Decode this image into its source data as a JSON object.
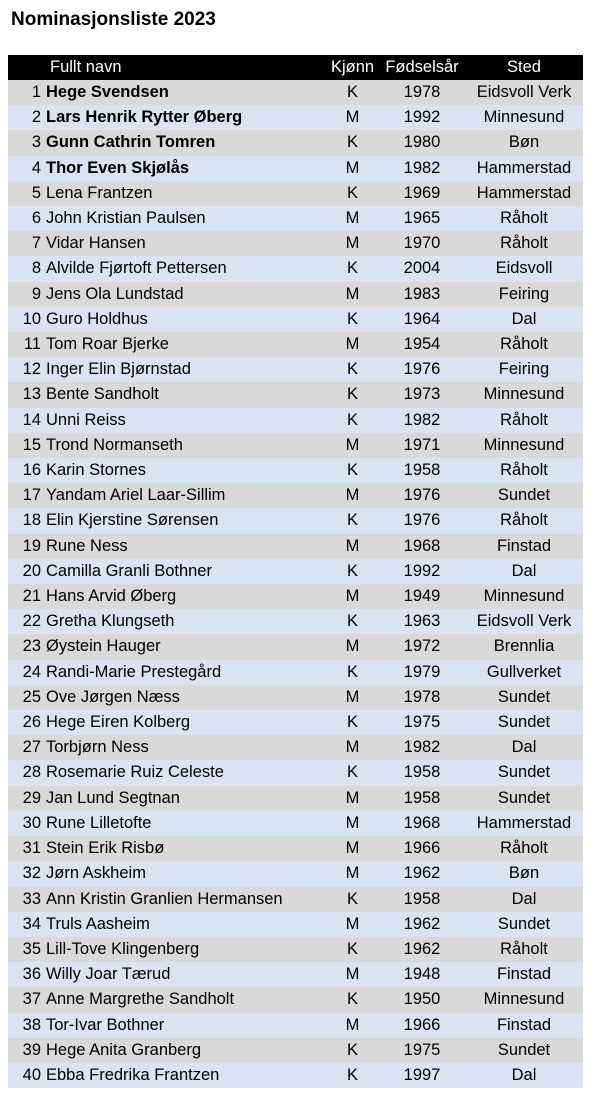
{
  "title": "Nominasjonsliste 2023",
  "headers": {
    "num": "",
    "name": "Fullt navn",
    "gender": "Kjønn",
    "year": "Fødselsår",
    "place": "Sted"
  },
  "rows": [
    {
      "num": "1",
      "name": "Hege Svendsen",
      "gender": "K",
      "year": "1978",
      "place": "Eidsvoll Verk",
      "bold": true
    },
    {
      "num": "2",
      "name": "Lars Henrik Rytter Øberg",
      "gender": "M",
      "year": "1992",
      "place": "Minnesund",
      "bold": true
    },
    {
      "num": "3",
      "name": "Gunn Cathrin Tomren",
      "gender": "K",
      "year": "1980",
      "place": "Bøn",
      "bold": true
    },
    {
      "num": "4",
      "name": "Thor Even Skjølås",
      "gender": "M",
      "year": "1982",
      "place": "Hammerstad",
      "bold": true
    },
    {
      "num": "5",
      "name": "Lena Frantzen",
      "gender": "K",
      "year": "1969",
      "place": "Hammerstad",
      "bold": false
    },
    {
      "num": "6",
      "name": "John Kristian Paulsen",
      "gender": "M",
      "year": "1965",
      "place": "Råholt",
      "bold": false
    },
    {
      "num": "7",
      "name": "Vidar Hansen",
      "gender": "M",
      "year": "1970",
      "place": "Råholt",
      "bold": false
    },
    {
      "num": "8",
      "name": "Alvilde Fjørtoft Pettersen",
      "gender": "K",
      "year": "2004",
      "place": "Eidsvoll",
      "bold": false
    },
    {
      "num": "9",
      "name": "Jens Ola Lundstad",
      "gender": "M",
      "year": "1983",
      "place": "Feiring",
      "bold": false
    },
    {
      "num": "10",
      "name": "Guro Holdhus",
      "gender": "K",
      "year": "1964",
      "place": "Dal",
      "bold": false
    },
    {
      "num": "11",
      "name": "Tom Roar Bjerke",
      "gender": "M",
      "year": "1954",
      "place": "Råholt",
      "bold": false
    },
    {
      "num": "12",
      "name": "Inger Elin Bjørnstad",
      "gender": "K",
      "year": "1976",
      "place": "Feiring",
      "bold": false
    },
    {
      "num": "13",
      "name": "Bente Sandholt",
      "gender": "K",
      "year": "1973",
      "place": "Minnesund",
      "bold": false
    },
    {
      "num": "14",
      "name": "Unni Reiss",
      "gender": "K",
      "year": "1982",
      "place": "Råholt",
      "bold": false
    },
    {
      "num": "15",
      "name": "Trond Normanseth",
      "gender": "M",
      "year": "1971",
      "place": "Minnesund",
      "bold": false
    },
    {
      "num": "16",
      "name": "Karin Stornes",
      "gender": "K",
      "year": "1958",
      "place": "Råholt",
      "bold": false
    },
    {
      "num": "17",
      "name": "Yandam Ariel Laar-Sillim",
      "gender": "M",
      "year": "1976",
      "place": "Sundet",
      "bold": false
    },
    {
      "num": "18",
      "name": "Elin Kjerstine Sørensen",
      "gender": "K",
      "year": "1976",
      "place": "Råholt",
      "bold": false
    },
    {
      "num": "19",
      "name": "Rune Ness",
      "gender": "M",
      "year": "1968",
      "place": "Finstad",
      "bold": false
    },
    {
      "num": "20",
      "name": "Camilla Granli Bothner",
      "gender": "K",
      "year": "1992",
      "place": "Dal",
      "bold": false
    },
    {
      "num": "21",
      "name": "Hans Arvid Øberg",
      "gender": "M",
      "year": "1949",
      "place": "Minnesund",
      "bold": false
    },
    {
      "num": "22",
      "name": "Gretha Klungseth",
      "gender": "K",
      "year": "1963",
      "place": "Eidsvoll Verk",
      "bold": false
    },
    {
      "num": "23",
      "name": "Øystein Hauger",
      "gender": "M",
      "year": "1972",
      "place": "Brennlia",
      "bold": false
    },
    {
      "num": "24",
      "name": "Randi-Marie Prestegård",
      "gender": "K",
      "year": "1979",
      "place": "Gullverket",
      "bold": false
    },
    {
      "num": "25",
      "name": "Ove Jørgen Næss",
      "gender": "M",
      "year": "1978",
      "place": "Sundet",
      "bold": false
    },
    {
      "num": "26",
      "name": "Hege Eiren Kolberg",
      "gender": "K",
      "year": "1975",
      "place": "Sundet",
      "bold": false
    },
    {
      "num": "27",
      "name": "Torbjørn Ness",
      "gender": "M",
      "year": "1982",
      "place": "Dal",
      "bold": false
    },
    {
      "num": "28",
      "name": "Rosemarie Ruiz Celeste",
      "gender": "K",
      "year": "1958",
      "place": "Sundet",
      "bold": false
    },
    {
      "num": "29",
      "name": "Jan Lund Segtnan",
      "gender": "M",
      "year": "1958",
      "place": "Sundet",
      "bold": false
    },
    {
      "num": "30",
      "name": "Rune Lilletofte",
      "gender": "M",
      "year": "1968",
      "place": "Hammerstad",
      "bold": false
    },
    {
      "num": "31",
      "name": "Stein Erik Risbø",
      "gender": "M",
      "year": "1966",
      "place": "Råholt",
      "bold": false
    },
    {
      "num": "32",
      "name": "Jørn Askheim",
      "gender": "M",
      "year": "1962",
      "place": "Bøn",
      "bold": false
    },
    {
      "num": "33",
      "name": "Ann Kristin Granlien Hermansen",
      "gender": "K",
      "year": "1958",
      "place": "Dal",
      "bold": false
    },
    {
      "num": "34",
      "name": "Truls Aasheim",
      "gender": "M",
      "year": "1962",
      "place": "Sundet",
      "bold": false
    },
    {
      "num": "35",
      "name": "Lill-Tove Klingenberg",
      "gender": "K",
      "year": "1962",
      "place": "Råholt",
      "bold": false
    },
    {
      "num": "36",
      "name": "Willy Joar Tærud",
      "gender": "M",
      "year": "1948",
      "place": "Finstad",
      "bold": false
    },
    {
      "num": "37",
      "name": "Anne Margrethe Sandholt",
      "gender": "K",
      "year": "1950",
      "place": "Minnesund",
      "bold": false
    },
    {
      "num": "38",
      "name": "Tor-Ivar Bothner",
      "gender": "M",
      "year": "1966",
      "place": "Finstad",
      "bold": false
    },
    {
      "num": "39",
      "name": "Hege Anita Granberg",
      "gender": "K",
      "year": "1975",
      "place": "Sundet",
      "bold": false
    },
    {
      "num": "40",
      "name": "Ebba Fredrika Frantzen",
      "gender": "K",
      "year": "1997",
      "place": "Dal",
      "bold": false
    }
  ]
}
